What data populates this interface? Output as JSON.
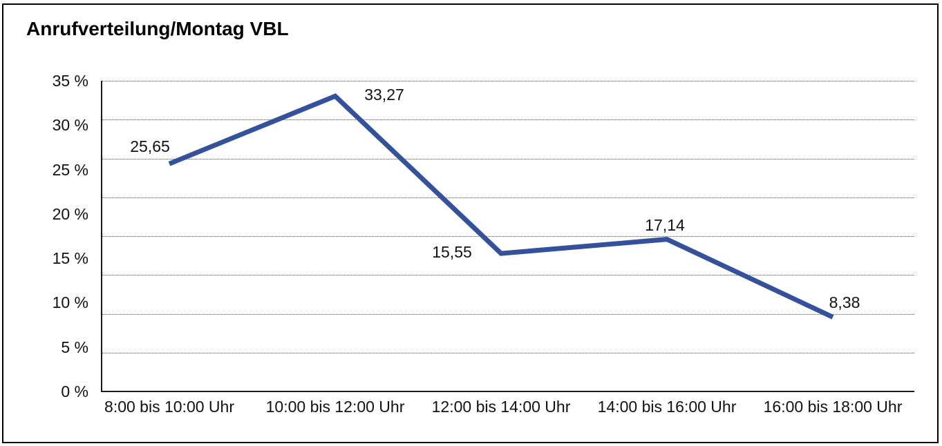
{
  "title": "Anrufverteilung/Montag VBL",
  "chart_data": {
    "type": "line",
    "title": "Anrufverteilung/Montag VBL",
    "categories": [
      "8:00 bis 10:00 Uhr",
      "10:00 bis 12:00 Uhr",
      "12:00 bis 14:00 Uhr",
      "14:00 bis 16:00 Uhr",
      "16:00 bis 18:00 Uhr"
    ],
    "series": [
      {
        "name": "Anrufverteilung Montag VBL",
        "values": [
          25.65,
          33.27,
          15.55,
          17.14,
          8.38
        ],
        "point_labels": [
          "25,65",
          "33,27",
          "15,55",
          "17,14",
          "8,38"
        ]
      }
    ],
    "xlabel": "",
    "ylabel": "",
    "ylim": [
      0,
      35
    ],
    "y_axis": {
      "unit": "%",
      "ticks": [
        {
          "value": 35,
          "label": "35 %"
        },
        {
          "value": 30,
          "label": "30 %"
        },
        {
          "value": 25,
          "label": "25 %"
        },
        {
          "value": 20,
          "label": "20 %"
        },
        {
          "value": 15,
          "label": "15 %"
        },
        {
          "value": 10,
          "label": "10 %"
        },
        {
          "value": 5,
          "label": "5 %"
        },
        {
          "value": 0,
          "label": "0 %"
        }
      ]
    },
    "grid": {
      "horizontal": true,
      "style": "dotted",
      "intervals": 8
    },
    "legend": "none",
    "colors": {
      "line": "#34519E",
      "axis": "#1a1a1a",
      "grid": "#4d4d4d",
      "text": "#111111",
      "background": "#ffffff",
      "frame_border": "#000000"
    }
  }
}
